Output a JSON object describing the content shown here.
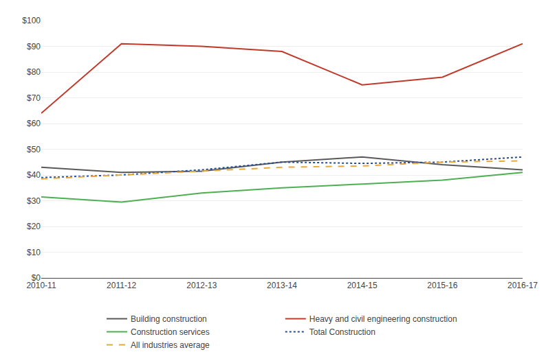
{
  "chart_data": {
    "type": "line",
    "categories": [
      "2010-11",
      "2011-12",
      "2012-13",
      "2013-14",
      "2014-15",
      "2015-16",
      "2016-17"
    ],
    "series": [
      {
        "name": "Building construction",
        "color": "#595959",
        "line_style": "solid",
        "values": [
          43,
          41,
          41.5,
          45,
          47,
          44,
          42
        ]
      },
      {
        "name": "Heavy and civil engineering construction",
        "color": "#C0392B",
        "line_style": "solid",
        "values": [
          64,
          91,
          90,
          88,
          75,
          78,
          91
        ]
      },
      {
        "name": "Construction services",
        "color": "#4CAF50",
        "line_style": "solid",
        "values": [
          31.5,
          29.5,
          33,
          35,
          36.5,
          38,
          41
        ]
      },
      {
        "name": "Total Construction",
        "color": "#1F4E9B",
        "line_style": "dotted",
        "values": [
          39,
          40,
          42,
          45,
          44.5,
          45,
          47
        ]
      },
      {
        "name": "All industries average",
        "color": "#E8A838",
        "line_style": "dashed",
        "values": [
          38.5,
          40,
          41.5,
          43,
          43.5,
          45,
          45.5
        ]
      }
    ],
    "ylim": [
      0,
      100
    ],
    "yticks": [
      {
        "value": 0,
        "label": "$0"
      },
      {
        "value": 10,
        "label": "$10"
      },
      {
        "value": 20,
        "label": "$20"
      },
      {
        "value": 30,
        "label": "$30"
      },
      {
        "value": 40,
        "label": "$40"
      },
      {
        "value": 50,
        "label": "$50"
      },
      {
        "value": 60,
        "label": "$60"
      },
      {
        "value": 70,
        "label": "$70"
      },
      {
        "value": 80,
        "label": "$80"
      },
      {
        "value": 90,
        "label": "$90"
      },
      {
        "value": 100,
        "label": "$100"
      }
    ],
    "grid": true,
    "legend": "bottom"
  }
}
